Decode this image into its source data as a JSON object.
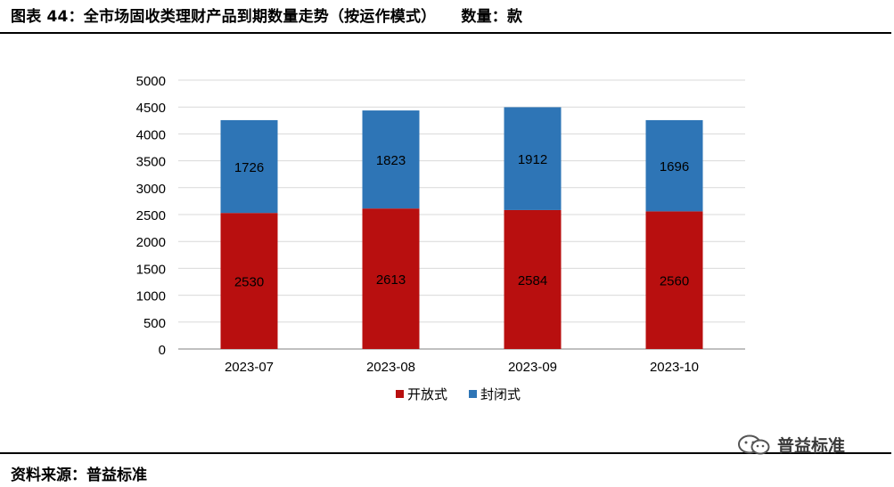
{
  "header": {
    "title": "图表 44：全市场固收类理财产品到期数量走势（按运作模式）",
    "unit": "数量：款"
  },
  "footer": {
    "source": "资料来源：普益标准",
    "watermark": "普益标准"
  },
  "colors": {
    "open": "#b80f0f",
    "closed": "#2e75b6",
    "grid": "#d9d9d9",
    "axis": "#808080"
  },
  "icons": {
    "watermark": "wechat-icon"
  },
  "chart_data": {
    "type": "bar",
    "stacked": true,
    "categories": [
      "2023-07",
      "2023-08",
      "2023-09",
      "2023-10"
    ],
    "series": [
      {
        "name": "开放式",
        "color": "#b80f0f",
        "values": [
          2530,
          2613,
          2584,
          2560
        ]
      },
      {
        "name": "封闭式",
        "color": "#2e75b6",
        "values": [
          1726,
          1823,
          1912,
          1696
        ]
      }
    ],
    "ylim": [
      0,
      5000
    ],
    "yticks": [
      0,
      500,
      1000,
      1500,
      2000,
      2500,
      3000,
      3500,
      4000,
      4500,
      5000
    ],
    "grid": true,
    "data_labels": true,
    "legend": "bottom-center"
  }
}
